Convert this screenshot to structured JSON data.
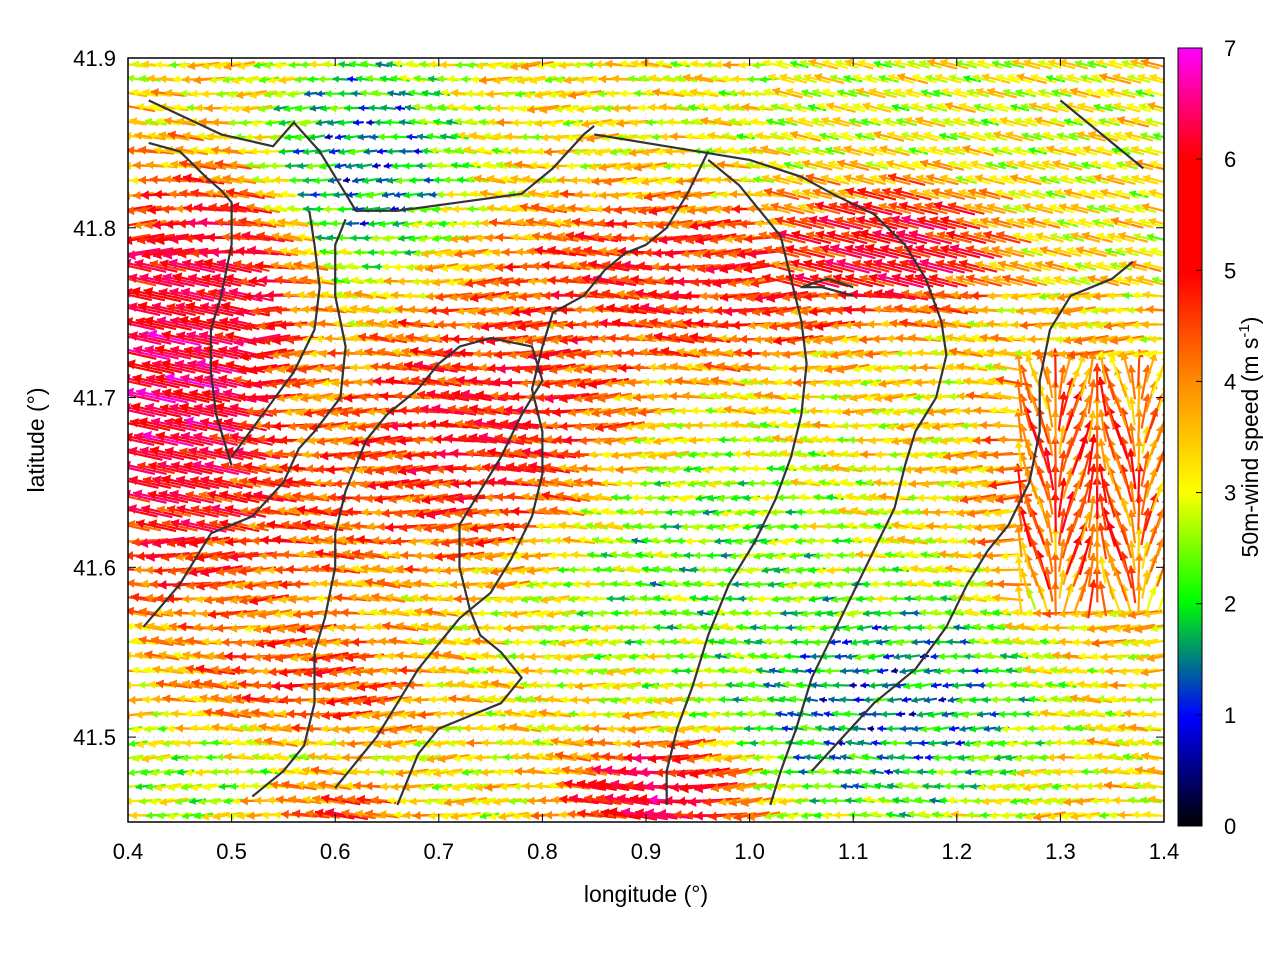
{
  "chart_data": {
    "type": "vector-field",
    "title": "",
    "xlabel": "longitude (°)",
    "ylabel": "latitude (°)",
    "xlim": [
      0.4,
      1.4
    ],
    "ylim": [
      41.45,
      41.9
    ],
    "xticks": [
      "0.4",
      "0.5",
      "0.6",
      "0.7",
      "0.8",
      "0.9",
      "1.0",
      "1.1",
      "1.2",
      "1.3",
      "1.4"
    ],
    "yticks": [
      "41.5",
      "41.6",
      "41.7",
      "41.8",
      "41.9"
    ],
    "colorbar": {
      "label": "50m-wind speed (m s",
      "label_superscript": "-1",
      "label_suffix": ")",
      "range": [
        0,
        7
      ],
      "ticks": [
        "0",
        "1",
        "2",
        "3",
        "4",
        "5",
        "6",
        "7"
      ],
      "palette": [
        "#000000",
        "#0000ff",
        "#00ff00",
        "#ffff00",
        "#ff8c00",
        "#ff0000",
        "#ff00ff"
      ]
    },
    "grid": "dotted light-grey",
    "dominant_wind_direction": "from east toward west",
    "coastlines": [
      [
        [
          0.42,
          41.875
        ],
        [
          0.49,
          41.855
        ],
        [
          0.54,
          41.848
        ],
        [
          0.56,
          41.862
        ],
        [
          0.585,
          41.845
        ],
        [
          0.605,
          41.825
        ],
        [
          0.62,
          41.81
        ],
        [
          0.66,
          41.81
        ],
        [
          0.72,
          41.815
        ],
        [
          0.78,
          41.82
        ],
        [
          0.81,
          41.835
        ],
        [
          0.84,
          41.855
        ],
        [
          0.85,
          41.86
        ]
      ],
      [
        [
          0.42,
          41.85
        ],
        [
          0.45,
          41.845
        ],
        [
          0.475,
          41.83
        ],
        [
          0.49,
          41.822
        ],
        [
          0.5,
          41.815
        ],
        [
          0.5,
          41.79
        ],
        [
          0.49,
          41.76
        ],
        [
          0.48,
          41.74
        ],
        [
          0.48,
          41.715
        ],
        [
          0.485,
          41.69
        ],
        [
          0.5,
          41.66
        ]
      ],
      [
        [
          0.61,
          41.805
        ],
        [
          0.6,
          41.79
        ],
        [
          0.6,
          41.76
        ],
        [
          0.61,
          41.73
        ],
        [
          0.605,
          41.7
        ],
        [
          0.58,
          41.68
        ],
        [
          0.565,
          41.67
        ],
        [
          0.55,
          41.65
        ],
        [
          0.52,
          41.63
        ],
        [
          0.48,
          41.62
        ],
        [
          0.45,
          41.59
        ],
        [
          0.415,
          41.565
        ]
      ],
      [
        [
          0.575,
          41.81
        ],
        [
          0.58,
          41.79
        ],
        [
          0.585,
          41.765
        ],
        [
          0.58,
          41.74
        ],
        [
          0.56,
          41.715
        ],
        [
          0.53,
          41.69
        ],
        [
          0.5,
          41.665
        ]
      ],
      [
        [
          0.66,
          41.46
        ],
        [
          0.68,
          41.49
        ],
        [
          0.7,
          41.505
        ],
        [
          0.74,
          41.515
        ],
        [
          0.76,
          41.52
        ],
        [
          0.78,
          41.535
        ],
        [
          0.76,
          41.55
        ],
        [
          0.74,
          41.56
        ],
        [
          0.73,
          41.575
        ],
        [
          0.72,
          41.6
        ],
        [
          0.72,
          41.625
        ],
        [
          0.74,
          41.645
        ],
        [
          0.76,
          41.665
        ],
        [
          0.78,
          41.69
        ],
        [
          0.8,
          41.71
        ],
        [
          0.79,
          41.73
        ],
        [
          0.75,
          41.735
        ],
        [
          0.72,
          41.73
        ],
        [
          0.7,
          41.72
        ],
        [
          0.68,
          41.705
        ],
        [
          0.65,
          41.69
        ],
        [
          0.63,
          41.675
        ],
        [
          0.62,
          41.66
        ],
        [
          0.61,
          41.645
        ],
        [
          0.6,
          41.62
        ],
        [
          0.6,
          41.6
        ],
        [
          0.59,
          41.57
        ],
        [
          0.58,
          41.55
        ],
        [
          0.58,
          41.52
        ],
        [
          0.57,
          41.495
        ],
        [
          0.55,
          41.48
        ],
        [
          0.52,
          41.465
        ]
      ],
      [
        [
          0.85,
          41.855
        ],
        [
          0.9,
          41.85
        ],
        [
          0.95,
          41.845
        ],
        [
          1.0,
          41.84
        ],
        [
          1.05,
          41.83
        ],
        [
          1.08,
          41.82
        ],
        [
          1.12,
          41.808
        ],
        [
          1.15,
          41.79
        ],
        [
          1.17,
          41.77
        ],
        [
          1.185,
          41.745
        ],
        [
          1.19,
          41.725
        ],
        [
          1.18,
          41.7
        ],
        [
          1.16,
          41.68
        ],
        [
          1.15,
          41.66
        ],
        [
          1.14,
          41.635
        ],
        [
          1.12,
          41.61
        ],
        [
          1.1,
          41.585
        ],
        [
          1.08,
          41.56
        ],
        [
          1.06,
          41.535
        ],
        [
          1.045,
          41.505
        ],
        [
          1.03,
          41.48
        ],
        [
          1.02,
          41.46
        ]
      ],
      [
        [
          0.96,
          41.845
        ],
        [
          0.94,
          41.82
        ],
        [
          0.92,
          41.8
        ],
        [
          0.9,
          41.79
        ],
        [
          0.88,
          41.785
        ],
        [
          0.86,
          41.775
        ],
        [
          0.84,
          41.76
        ],
        [
          0.81,
          41.75
        ],
        [
          0.8,
          41.73
        ],
        [
          0.79,
          41.705
        ],
        [
          0.8,
          41.68
        ],
        [
          0.8,
          41.655
        ],
        [
          0.79,
          41.63
        ],
        [
          0.77,
          41.605
        ],
        [
          0.75,
          41.585
        ],
        [
          0.72,
          41.57
        ],
        [
          0.7,
          41.555
        ],
        [
          0.68,
          41.54
        ],
        [
          0.66,
          41.52
        ],
        [
          0.64,
          41.5
        ],
        [
          0.62,
          41.485
        ],
        [
          0.6,
          41.47
        ]
      ],
      [
        [
          0.96,
          41.84
        ],
        [
          0.99,
          41.825
        ],
        [
          1.01,
          41.81
        ],
        [
          1.03,
          41.795
        ],
        [
          1.04,
          41.77
        ],
        [
          1.05,
          41.745
        ],
        [
          1.055,
          41.72
        ],
        [
          1.05,
          41.69
        ],
        [
          1.04,
          41.665
        ],
        [
          1.025,
          41.64
        ],
        [
          1.005,
          41.615
        ],
        [
          0.98,
          41.59
        ],
        [
          0.96,
          41.56
        ],
        [
          0.945,
          41.53
        ],
        [
          0.93,
          41.505
        ],
        [
          0.92,
          41.48
        ],
        [
          0.92,
          41.46
        ]
      ],
      [
        [
          1.37,
          41.78
        ],
        [
          1.35,
          41.77
        ],
        [
          1.33,
          41.765
        ],
        [
          1.31,
          41.76
        ],
        [
          1.29,
          41.74
        ],
        [
          1.28,
          41.71
        ],
        [
          1.28,
          41.68
        ],
        [
          1.27,
          41.65
        ],
        [
          1.25,
          41.625
        ],
        [
          1.23,
          41.61
        ],
        [
          1.21,
          41.59
        ],
        [
          1.19,
          41.565
        ],
        [
          1.16,
          41.54
        ],
        [
          1.12,
          41.52
        ],
        [
          1.09,
          41.5
        ],
        [
          1.06,
          41.48
        ]
      ],
      [
        [
          1.3,
          41.875
        ],
        [
          1.33,
          41.86
        ],
        [
          1.36,
          41.845
        ],
        [
          1.38,
          41.835
        ]
      ],
      [
        [
          1.1,
          41.76
        ],
        [
          1.07,
          41.765
        ],
        [
          1.05,
          41.765
        ],
        [
          1.075,
          41.77
        ],
        [
          1.1,
          41.765
        ]
      ]
    ],
    "regions": [
      {
        "x": [
          0.4,
          0.5
        ],
        "y": [
          41.63,
          41.78
        ],
        "speed": 6.8
      },
      {
        "x": [
          0.46,
          0.54
        ],
        "y": [
          41.72,
          41.8
        ],
        "speed": 5.6
      },
      {
        "x": [
          0.66,
          0.84
        ],
        "y": [
          41.63,
          41.73
        ],
        "speed": 5.4
      },
      {
        "x": [
          0.82,
          1.06
        ],
        "y": [
          41.74,
          41.8
        ],
        "speed": 5.2
      },
      {
        "x": [
          1.08,
          1.2
        ],
        "y": [
          41.77,
          41.82
        ],
        "speed": 6.2
      },
      {
        "x": [
          0.42,
          0.62
        ],
        "y": [
          41.6,
          41.67
        ],
        "speed": 4.8
      },
      {
        "x": [
          0.5,
          0.64
        ],
        "y": [
          41.5,
          41.55
        ],
        "speed": 4.9
      },
      {
        "x": [
          0.87,
          0.96
        ],
        "y": [
          41.45,
          41.48
        ],
        "speed": 6.3
      },
      {
        "x": [
          0.55,
          0.63
        ],
        "y": [
          41.45,
          41.47
        ],
        "speed": 5.5
      },
      {
        "x": [
          1.27,
          1.37
        ],
        "y": [
          41.6,
          41.7
        ],
        "speed": 4.8
      },
      {
        "x": [
          1.04,
          1.22
        ],
        "y": [
          41.48,
          41.56
        ],
        "speed": 0.9
      },
      {
        "x": [
          0.58,
          0.68
        ],
        "y": [
          41.8,
          41.88
        ],
        "speed": 1.0
      },
      {
        "x": [
          0.85,
          1.05
        ],
        "y": [
          41.56,
          41.65
        ],
        "speed": 2.0
      },
      {
        "x": [
          0.42,
          0.62
        ],
        "y": [
          41.46,
          41.5
        ],
        "speed": 2.3
      },
      {
        "x": [
          1.0,
          1.3
        ],
        "y": [
          41.82,
          41.9
        ],
        "speed": 2.8
      }
    ]
  }
}
